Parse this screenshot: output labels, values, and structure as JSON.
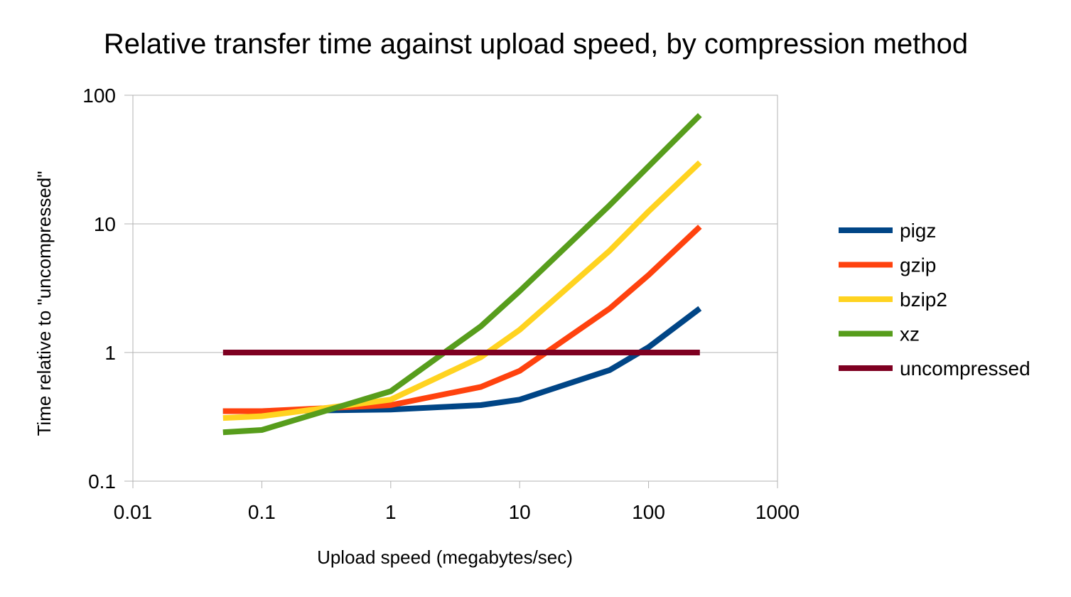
{
  "chart_data": {
    "type": "line",
    "title": "Relative transfer time against upload speed, by compression method",
    "xlabel": "Upload speed (megabytes/sec)",
    "ylabel": "Time relative to \"uncompressed\"",
    "xscale": "log",
    "yscale": "log",
    "xlim": [
      0.01,
      1000
    ],
    "ylim": [
      0.1,
      100
    ],
    "x_ticks": [
      0.01,
      0.1,
      1,
      10,
      100,
      1000
    ],
    "x_tick_labels": [
      "0.01",
      "0.1",
      "1",
      "10",
      "100",
      "1000"
    ],
    "y_ticks": [
      0.1,
      1,
      10,
      100
    ],
    "y_tick_labels": [
      "0.1",
      "1",
      "10",
      "100"
    ],
    "grid": "horizontal major",
    "legend_position": "right",
    "x": [
      0.05,
      0.1,
      1,
      5,
      10,
      50,
      100,
      250
    ],
    "series": [
      {
        "name": "pigz",
        "color": "#004586",
        "values": [
          0.35,
          0.35,
          0.36,
          0.39,
          0.43,
          0.73,
          1.1,
          2.2
        ]
      },
      {
        "name": "gzip",
        "color": "#ff420e",
        "values": [
          0.35,
          0.35,
          0.39,
          0.54,
          0.72,
          2.2,
          4.0,
          9.5
        ]
      },
      {
        "name": "bzip2",
        "color": "#ffd320",
        "values": [
          0.31,
          0.32,
          0.43,
          0.92,
          1.5,
          6.2,
          12.5,
          30
        ]
      },
      {
        "name": "xz",
        "color": "#579d1c",
        "values": [
          0.24,
          0.25,
          0.5,
          1.6,
          3.0,
          14,
          28,
          70
        ]
      },
      {
        "name": "uncompressed",
        "color": "#7e0021",
        "values": [
          1,
          1,
          1,
          1,
          1,
          1,
          1,
          1
        ]
      }
    ]
  }
}
